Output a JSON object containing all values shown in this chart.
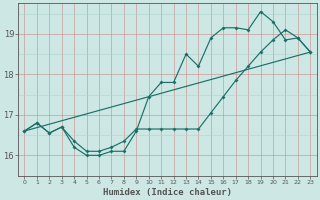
{
  "xlabel": "Humidex (Indice chaleur)",
  "bg_color": "#cde8e4",
  "line_color": "#1a7068",
  "grid_color": "#b0d4ce",
  "grid_color_major": "#c8c8c8",
  "axis_color": "#555555",
  "xlim": [
    -0.5,
    23.5
  ],
  "ylim": [
    15.5,
    19.75
  ],
  "yticks": [
    16,
    17,
    18,
    19
  ],
  "xticks": [
    0,
    1,
    2,
    3,
    4,
    5,
    6,
    7,
    8,
    9,
    10,
    11,
    12,
    13,
    14,
    15,
    16,
    17,
    18,
    19,
    20,
    21,
    22,
    23
  ],
  "series1_x": [
    0,
    1,
    2,
    3,
    4,
    5,
    6,
    7,
    8,
    9,
    10,
    11,
    12,
    13,
    14,
    15,
    16,
    17,
    18,
    19,
    20,
    21,
    22,
    23
  ],
  "series1_y": [
    16.6,
    16.8,
    16.55,
    16.7,
    16.2,
    16.0,
    16.0,
    16.1,
    16.1,
    16.6,
    17.45,
    17.8,
    17.8,
    18.5,
    18.2,
    18.9,
    19.15,
    19.15,
    19.1,
    19.55,
    19.3,
    18.85,
    18.9,
    18.55
  ],
  "series2_x": [
    0,
    23
  ],
  "series2_y": [
    16.6,
    18.55
  ],
  "series3_x": [
    0,
    1,
    2,
    3,
    4,
    5,
    6,
    7,
    8,
    9,
    10,
    11,
    12,
    13,
    14,
    15,
    16,
    17,
    18,
    19,
    20,
    21,
    22,
    23
  ],
  "series3_y": [
    16.6,
    16.8,
    16.55,
    16.7,
    16.35,
    16.1,
    16.1,
    16.2,
    16.35,
    16.65,
    16.65,
    16.65,
    16.65,
    16.65,
    16.65,
    17.05,
    17.45,
    17.85,
    18.2,
    18.55,
    18.85,
    19.1,
    18.9,
    18.55
  ]
}
